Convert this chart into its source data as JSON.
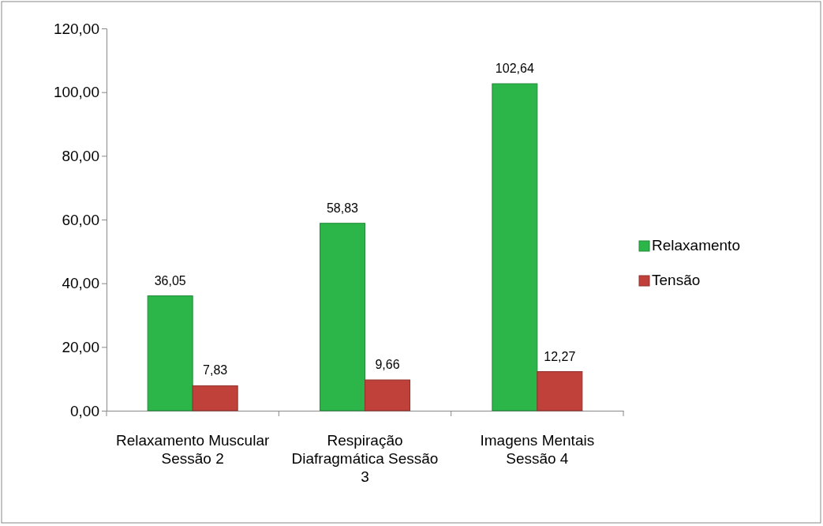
{
  "chart_data": {
    "type": "bar",
    "categories": [
      "Relaxamento Muscular Sessão 2",
      "Respiração Diafragmática Sessão 3",
      "Imagens Mentais Sessão 4"
    ],
    "series": [
      {
        "name": "Relaxamento",
        "color": "#2cb64a",
        "values": [
          36.05,
          58.83,
          102.64
        ],
        "value_labels": [
          "36,05",
          "58,83",
          "102,64"
        ]
      },
      {
        "name": "Tensão",
        "color": "#c0403a",
        "values": [
          7.83,
          9.66,
          12.27
        ],
        "value_labels": [
          "7,83",
          "9,66",
          "12,27"
        ]
      }
    ],
    "ylim": [
      0,
      120
    ],
    "yticks": [
      {
        "value": 0,
        "label": "0,00"
      },
      {
        "value": 20,
        "label": "20,00"
      },
      {
        "value": 40,
        "label": "40,00"
      },
      {
        "value": 60,
        "label": "60,00"
      },
      {
        "value": 80,
        "label": "80,00"
      },
      {
        "value": 100,
        "label": "100,00"
      },
      {
        "value": 120,
        "label": "120,00"
      }
    ],
    "grid": false,
    "legend": "right"
  }
}
